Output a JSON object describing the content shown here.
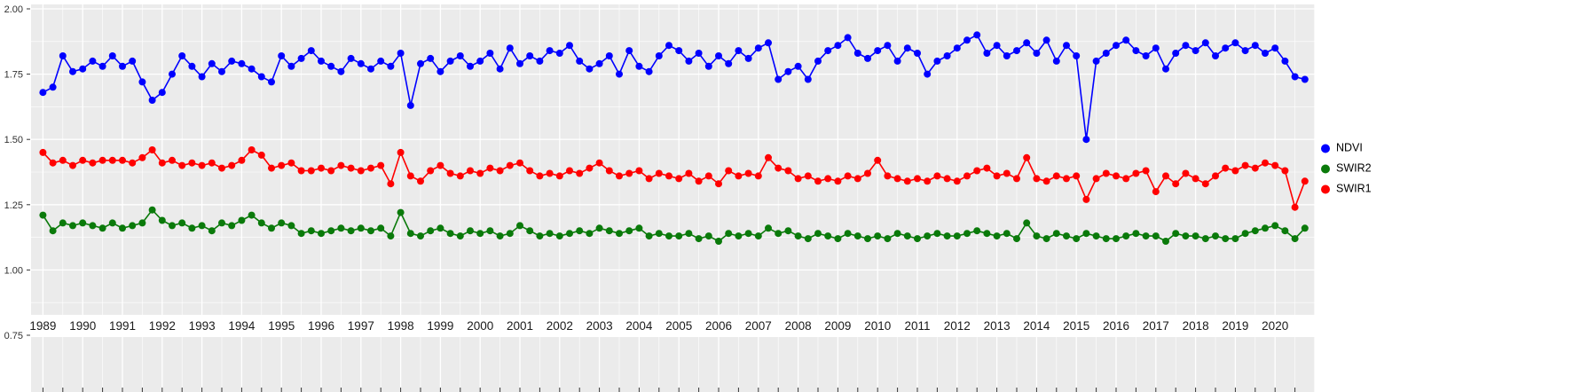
{
  "figure": {
    "background": "#FFFFFF"
  },
  "chart_data": {
    "type": "line",
    "title": "",
    "subtitle": "",
    "panel": {
      "background": "#EBEBEB",
      "grid_color": "#FFFFFF"
    },
    "x_axis": {
      "label": "",
      "range": [
        1988.7,
        2021.0
      ],
      "ticks": [
        1989,
        1990,
        1991,
        1992,
        1993,
        1994,
        1995,
        1996,
        1997,
        1998,
        1999,
        2000,
        2001,
        2002,
        2003,
        2004,
        2005,
        2006,
        2007,
        2008,
        2009,
        2010,
        2011,
        2012,
        2013,
        2014,
        2015,
        2016,
        2017,
        2018,
        2019,
        2020
      ],
      "tick_labels": [
        "1989",
        "1990",
        "1991",
        "1992",
        "1993",
        "1994",
        "1995",
        "1996",
        "1997",
        "1998",
        "1999",
        "2000",
        "2001",
        "2002",
        "2003",
        "2004",
        "2005",
        "2006",
        "2007",
        "2008",
        "2009",
        "2010",
        "2011",
        "2012",
        "2013",
        "2014",
        "2015",
        "2016",
        "2017",
        "2018",
        "2019",
        "2020"
      ],
      "minor_tick_step": 0.5
    },
    "y_axis": {
      "label": "",
      "ticks": [
        2.0,
        1.75,
        1.5,
        1.25,
        1.0,
        0.75
      ],
      "tick_labels": [
        "2.00",
        "1.75",
        "1.50",
        "1.25",
        "1.00",
        "0.75"
      ],
      "visible_value_range": [
        0.83,
        2.02
      ]
    },
    "legend": {
      "position": "right",
      "entries": [
        {
          "label": "NDVI",
          "color": "#0000FF"
        },
        {
          "label": "SWIR2",
          "color": "#0A7A0A"
        },
        {
          "label": "SWIR1",
          "color": "#FF0000"
        }
      ]
    },
    "x_start": 1989.0,
    "x_step": 0.25,
    "series": [
      {
        "name": "NDVI",
        "color": "#0000FF",
        "values": [
          1.68,
          1.7,
          1.82,
          1.76,
          1.77,
          1.8,
          1.78,
          1.82,
          1.78,
          1.8,
          1.72,
          1.65,
          1.68,
          1.75,
          1.82,
          1.78,
          1.74,
          1.79,
          1.76,
          1.8,
          1.79,
          1.77,
          1.74,
          1.72,
          1.82,
          1.78,
          1.81,
          1.84,
          1.8,
          1.78,
          1.76,
          1.81,
          1.79,
          1.77,
          1.8,
          1.78,
          1.83,
          1.63,
          1.79,
          1.81,
          1.76,
          1.8,
          1.82,
          1.78,
          1.8,
          1.83,
          1.77,
          1.85,
          1.79,
          1.82,
          1.8,
          1.84,
          1.83,
          1.86,
          1.8,
          1.77,
          1.79,
          1.82,
          1.75,
          1.84,
          1.78,
          1.76,
          1.82,
          1.86,
          1.84,
          1.8,
          1.83,
          1.78,
          1.82,
          1.79,
          1.84,
          1.81,
          1.85,
          1.87,
          1.73,
          1.76,
          1.78,
          1.73,
          1.8,
          1.84,
          1.86,
          1.89,
          1.83,
          1.81,
          1.84,
          1.86,
          1.8,
          1.85,
          1.83,
          1.75,
          1.8,
          1.82,
          1.85,
          1.88,
          1.9,
          1.83,
          1.86,
          1.82,
          1.84,
          1.87,
          1.83,
          1.88,
          1.8,
          1.86,
          1.82,
          1.5,
          1.8,
          1.83,
          1.86,
          1.88,
          1.84,
          1.82,
          1.85,
          1.77,
          1.83,
          1.86,
          1.84,
          1.87,
          1.82,
          1.85,
          1.87,
          1.84,
          1.86,
          1.83,
          1.85,
          1.8,
          1.74,
          1.73
        ]
      },
      {
        "name": "SWIR2",
        "color": "#0A7A0A",
        "values": [
          1.21,
          1.15,
          1.18,
          1.17,
          1.18,
          1.17,
          1.16,
          1.18,
          1.16,
          1.17,
          1.18,
          1.23,
          1.19,
          1.17,
          1.18,
          1.16,
          1.17,
          1.15,
          1.18,
          1.17,
          1.19,
          1.21,
          1.18,
          1.16,
          1.18,
          1.17,
          1.14,
          1.15,
          1.14,
          1.15,
          1.16,
          1.15,
          1.16,
          1.15,
          1.16,
          1.13,
          1.22,
          1.14,
          1.13,
          1.15,
          1.16,
          1.14,
          1.13,
          1.15,
          1.14,
          1.15,
          1.13,
          1.14,
          1.17,
          1.15,
          1.13,
          1.14,
          1.13,
          1.14,
          1.15,
          1.14,
          1.16,
          1.15,
          1.14,
          1.15,
          1.16,
          1.13,
          1.14,
          1.13,
          1.13,
          1.14,
          1.12,
          1.13,
          1.11,
          1.14,
          1.13,
          1.14,
          1.13,
          1.16,
          1.14,
          1.15,
          1.13,
          1.12,
          1.14,
          1.13,
          1.12,
          1.14,
          1.13,
          1.12,
          1.13,
          1.12,
          1.14,
          1.13,
          1.12,
          1.13,
          1.14,
          1.13,
          1.13,
          1.14,
          1.15,
          1.14,
          1.13,
          1.14,
          1.12,
          1.18,
          1.13,
          1.12,
          1.14,
          1.13,
          1.12,
          1.14,
          1.13,
          1.12,
          1.12,
          1.13,
          1.14,
          1.13,
          1.13,
          1.11,
          1.14,
          1.13,
          1.13,
          1.12,
          1.13,
          1.12,
          1.12,
          1.14,
          1.15,
          1.16,
          1.17,
          1.15,
          1.12,
          1.16
        ]
      },
      {
        "name": "SWIR1",
        "color": "#FF0000",
        "values": [
          1.45,
          1.41,
          1.42,
          1.4,
          1.42,
          1.41,
          1.42,
          1.42,
          1.42,
          1.41,
          1.43,
          1.46,
          1.41,
          1.42,
          1.4,
          1.41,
          1.4,
          1.41,
          1.39,
          1.4,
          1.42,
          1.46,
          1.44,
          1.39,
          1.4,
          1.41,
          1.38,
          1.38,
          1.39,
          1.38,
          1.4,
          1.39,
          1.38,
          1.39,
          1.4,
          1.33,
          1.45,
          1.36,
          1.34,
          1.38,
          1.4,
          1.37,
          1.36,
          1.38,
          1.37,
          1.39,
          1.38,
          1.4,
          1.41,
          1.38,
          1.36,
          1.37,
          1.36,
          1.38,
          1.37,
          1.39,
          1.41,
          1.38,
          1.36,
          1.37,
          1.38,
          1.35,
          1.37,
          1.36,
          1.35,
          1.37,
          1.34,
          1.36,
          1.33,
          1.38,
          1.36,
          1.37,
          1.36,
          1.43,
          1.39,
          1.38,
          1.35,
          1.36,
          1.34,
          1.35,
          1.34,
          1.36,
          1.35,
          1.37,
          1.42,
          1.36,
          1.35,
          1.34,
          1.35,
          1.34,
          1.36,
          1.35,
          1.34,
          1.36,
          1.38,
          1.39,
          1.36,
          1.37,
          1.35,
          1.43,
          1.35,
          1.34,
          1.36,
          1.35,
          1.36,
          1.27,
          1.35,
          1.37,
          1.36,
          1.35,
          1.37,
          1.38,
          1.3,
          1.36,
          1.33,
          1.37,
          1.35,
          1.33,
          1.36,
          1.39,
          1.38,
          1.4,
          1.39,
          1.41,
          1.4,
          1.38,
          1.24,
          1.34
        ]
      }
    ]
  }
}
